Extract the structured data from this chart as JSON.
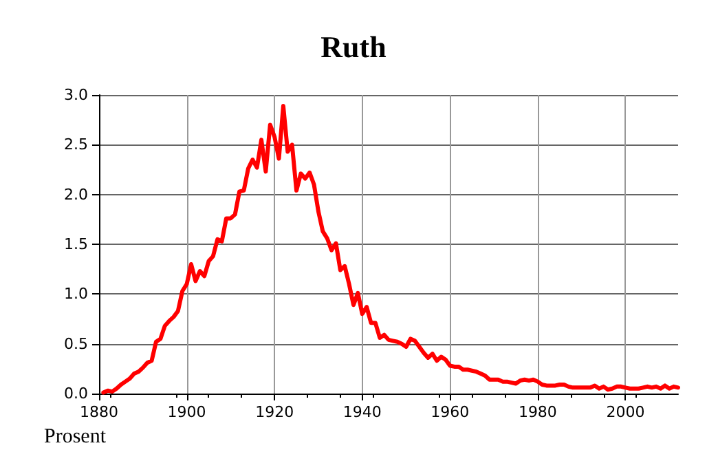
{
  "chart_data": {
    "type": "line",
    "title": "Ruth",
    "ylabel": "Prosent",
    "x": [
      1881,
      1882,
      1883,
      1884,
      1885,
      1886,
      1887,
      1888,
      1889,
      1890,
      1891,
      1892,
      1893,
      1894,
      1895,
      1896,
      1897,
      1898,
      1899,
      1900,
      1901,
      1902,
      1903,
      1904,
      1905,
      1906,
      1907,
      1908,
      1909,
      1910,
      1911,
      1912,
      1913,
      1914,
      1915,
      1916,
      1917,
      1918,
      1919,
      1920,
      1921,
      1922,
      1923,
      1924,
      1925,
      1926,
      1927,
      1928,
      1929,
      1930,
      1931,
      1932,
      1933,
      1934,
      1935,
      1936,
      1937,
      1938,
      1939,
      1940,
      1941,
      1942,
      1943,
      1944,
      1945,
      1946,
      1947,
      1948,
      1949,
      1950,
      1951,
      1952,
      1953,
      1954,
      1955,
      1956,
      1957,
      1958,
      1959,
      1960,
      1961,
      1962,
      1963,
      1964,
      1965,
      1966,
      1967,
      1968,
      1969,
      1970,
      1971,
      1972,
      1973,
      1974,
      1975,
      1976,
      1977,
      1978,
      1979,
      1980,
      1981,
      1982,
      1983,
      1984,
      1985,
      1986,
      1987,
      1988,
      1989,
      1990,
      1991,
      1992,
      1993,
      1994,
      1995,
      1996,
      1997,
      1998,
      1999,
      2000,
      2001,
      2002,
      2003,
      2004,
      2005,
      2006,
      2007,
      2008,
      2009,
      2010,
      2011,
      2012
    ],
    "series": [
      {
        "color": "#ff0000",
        "values": [
          0.01,
          0.03,
          0.02,
          0.05,
          0.09,
          0.12,
          0.15,
          0.2,
          0.22,
          0.26,
          0.31,
          0.33,
          0.52,
          0.55,
          0.68,
          0.73,
          0.77,
          0.83,
          1.03,
          1.1,
          1.3,
          1.13,
          1.23,
          1.18,
          1.33,
          1.38,
          1.55,
          1.53,
          1.76,
          1.76,
          1.8,
          2.03,
          2.04,
          2.26,
          2.35,
          2.27,
          2.55,
          2.23,
          2.7,
          2.58,
          2.36,
          2.89,
          2.43,
          2.5,
          2.04,
          2.21,
          2.16,
          2.22,
          2.1,
          1.83,
          1.63,
          1.56,
          1.44,
          1.51,
          1.24,
          1.28,
          1.1,
          0.89,
          1.01,
          0.8,
          0.87,
          0.71,
          0.71,
          0.56,
          0.59,
          0.54,
          0.53,
          0.52,
          0.5,
          0.47,
          0.55,
          0.53,
          0.47,
          0.41,
          0.36,
          0.4,
          0.33,
          0.37,
          0.34,
          0.28,
          0.27,
          0.27,
          0.24,
          0.24,
          0.23,
          0.22,
          0.2,
          0.18,
          0.14,
          0.14,
          0.14,
          0.12,
          0.12,
          0.11,
          0.1,
          0.13,
          0.14,
          0.13,
          0.14,
          0.12,
          0.09,
          0.08,
          0.08,
          0.08,
          0.09,
          0.09,
          0.07,
          0.06,
          0.06,
          0.06,
          0.06,
          0.06,
          0.08,
          0.05,
          0.07,
          0.04,
          0.05,
          0.07,
          0.07,
          0.06,
          0.05,
          0.05,
          0.05,
          0.06,
          0.07,
          0.06,
          0.07,
          0.05,
          0.08,
          0.05,
          0.07,
          0.06
        ]
      }
    ],
    "xlim": [
      1880,
      2012
    ],
    "xticks": [
      1880,
      1900,
      1920,
      1940,
      1960,
      1980,
      2000
    ],
    "ylim": [
      0,
      3
    ],
    "yticks": [
      {
        "value": 0,
        "label": "0.0"
      },
      {
        "value": 0.5,
        "label": "0.5"
      },
      {
        "value": 1,
        "label": "1.0"
      },
      {
        "value": 1.5,
        "label": "1.5"
      },
      {
        "value": 2,
        "label": "2.0"
      },
      {
        "value": 2.5,
        "label": "2.5"
      },
      {
        "value": 3,
        "label": "3.0"
      }
    ],
    "grid": true,
    "marker": "none",
    "line_style": "solid"
  }
}
